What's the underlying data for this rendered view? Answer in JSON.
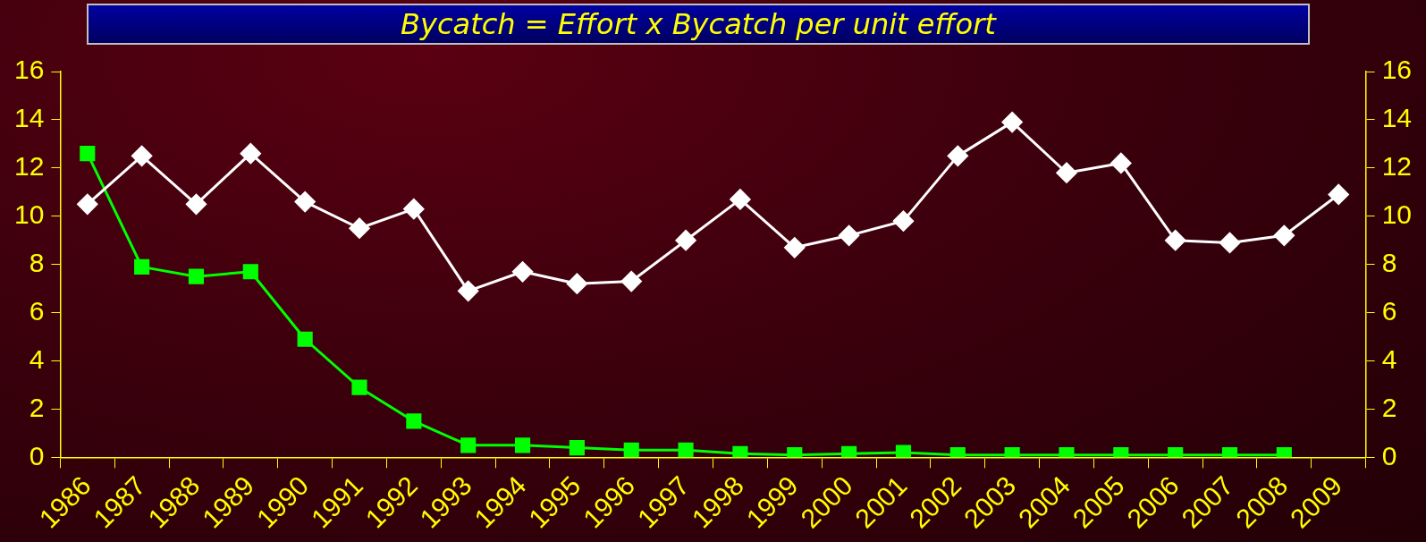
{
  "chart_data": {
    "type": "line",
    "title": "Bycatch = Effort x Bycatch per unit effort",
    "categories": [
      "1986",
      "1987",
      "1988",
      "1989",
      "1990",
      "1991",
      "1992",
      "1993",
      "1994",
      "1995",
      "1996",
      "1997",
      "1998",
      "1999",
      "2000",
      "2001",
      "2002",
      "2003",
      "2004",
      "2005",
      "2006",
      "2007",
      "2008",
      "2009"
    ],
    "series": [
      {
        "color": "#ffffff",
        "marker": "diamond",
        "values": [
          10.5,
          12.5,
          10.5,
          12.6,
          10.6,
          9.5,
          10.3,
          6.9,
          7.7,
          7.2,
          7.3,
          9.0,
          10.7,
          8.7,
          9.2,
          9.8,
          12.5,
          13.9,
          11.8,
          12.2,
          9.0,
          8.9,
          9.2,
          10.9
        ]
      },
      {
        "color": "#00ff00",
        "marker": "square",
        "values": [
          12.6,
          7.9,
          7.5,
          7.7,
          4.9,
          2.9,
          1.5,
          0.5,
          0.5,
          0.4,
          0.3,
          0.3,
          0.15,
          0.1,
          0.15,
          0.2,
          0.1,
          0.1,
          0.1,
          0.1,
          0.1,
          0.1,
          0.1,
          null
        ]
      }
    ],
    "ylim": [
      0,
      16
    ],
    "yticks": [
      0,
      2,
      4,
      6,
      8,
      10,
      12,
      14,
      16
    ],
    "y2lim": [
      0,
      16
    ],
    "y2ticks": [
      0,
      2,
      4,
      6,
      8,
      10,
      12,
      14,
      16
    ],
    "grid": false,
    "legend": false,
    "line_style": "solid"
  }
}
